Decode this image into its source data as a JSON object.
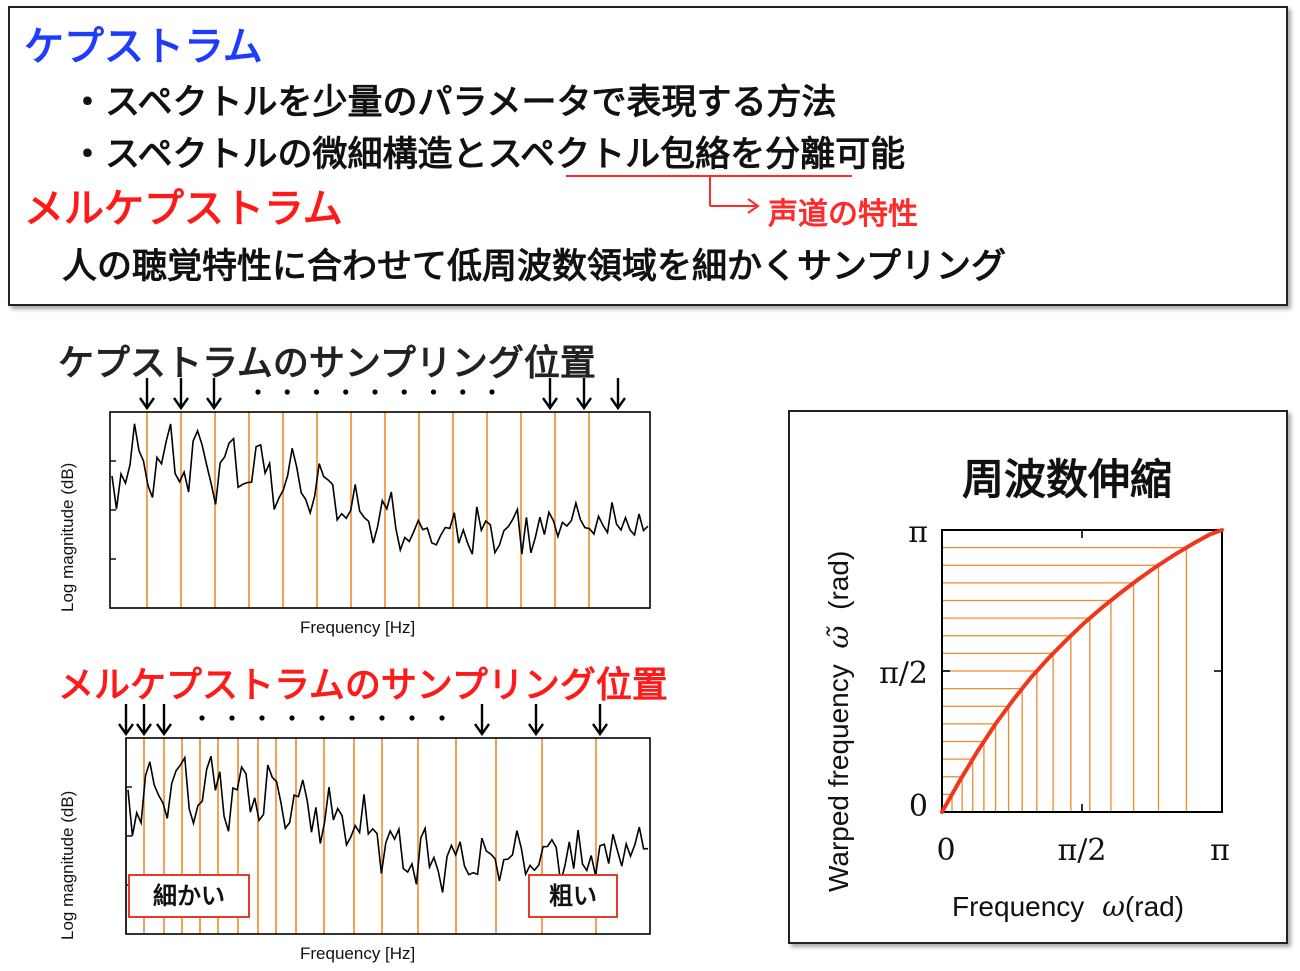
{
  "top": {
    "heading1": "ケプストラム",
    "bullet1": "・スペクトルを少量のパラメータで表現する方法",
    "bullet2_a": "・スペクトルの微細構造と",
    "bullet2_b": "スペクトル包絡",
    "bullet2_c": "を分離可能",
    "annotation": "声道の特性",
    "heading2": "メルケプストラム",
    "line3": "人の聴覚特性に合わせて低周波数領域を細かくサンプリング"
  },
  "plot1": {
    "title": "ケプストラムのサンプリング位置",
    "xlabel": "Frequency [Hz]",
    "ylabel": "Log magnitude (dB)"
  },
  "plot2": {
    "title": "メルケプストラムのサンプリング位置",
    "xlabel": "Frequency [Hz]",
    "ylabel": "Log magnitude (dB)",
    "label_fine": "細かい",
    "label_coarse": "粗い"
  },
  "warp": {
    "title": "周波数伸縮",
    "xlabel": "Frequency",
    "xsym": "ω",
    "xunit": "(rad)",
    "ylabel": "Warped frequency",
    "ysym": "ω̃",
    "yunit": "(rad)",
    "xticks": [
      "0",
      "π/2",
      "π"
    ],
    "yticks": [
      "0",
      "π/2",
      "π"
    ]
  },
  "colors": {
    "blue": "#1f3bff",
    "red": "#ff1a1a",
    "orange": "#f08a2a",
    "curve": "#f2361e"
  },
  "chart_data": [
    {
      "type": "line",
      "title": "ケプストラムのサンプリング位置",
      "xlabel": "Frequency [Hz]",
      "ylabel": "Log magnitude (dB)",
      "sampling": "uniform",
      "sample_count": 14
    },
    {
      "type": "line",
      "title": "メルケプストラムのサンプリング位置",
      "xlabel": "Frequency [Hz]",
      "ylabel": "Log magnitude (dB)",
      "sampling": "mel (dense at low frequency)",
      "sample_count": 18
    },
    {
      "type": "line",
      "title": "周波数伸縮",
      "xlabel": "Frequency ω (rad)",
      "ylabel": "Warped frequency ω̃ (rad)",
      "xlim": [
        0,
        3.1416
      ],
      "ylim": [
        0,
        3.1416
      ],
      "series": [
        {
          "x": [
            0,
            0.2,
            0.4,
            0.6,
            0.8,
            1.0,
            1.2,
            1.4,
            1.6,
            1.8,
            2.0,
            2.2,
            2.4,
            2.6,
            2.8,
            3.0,
            3.1416
          ],
          "y": [
            0,
            0.35,
            0.68,
            0.98,
            1.25,
            1.5,
            1.72,
            1.92,
            2.11,
            2.28,
            2.44,
            2.59,
            2.73,
            2.86,
            2.98,
            3.09,
            3.1416
          ]
        }
      ]
    }
  ]
}
